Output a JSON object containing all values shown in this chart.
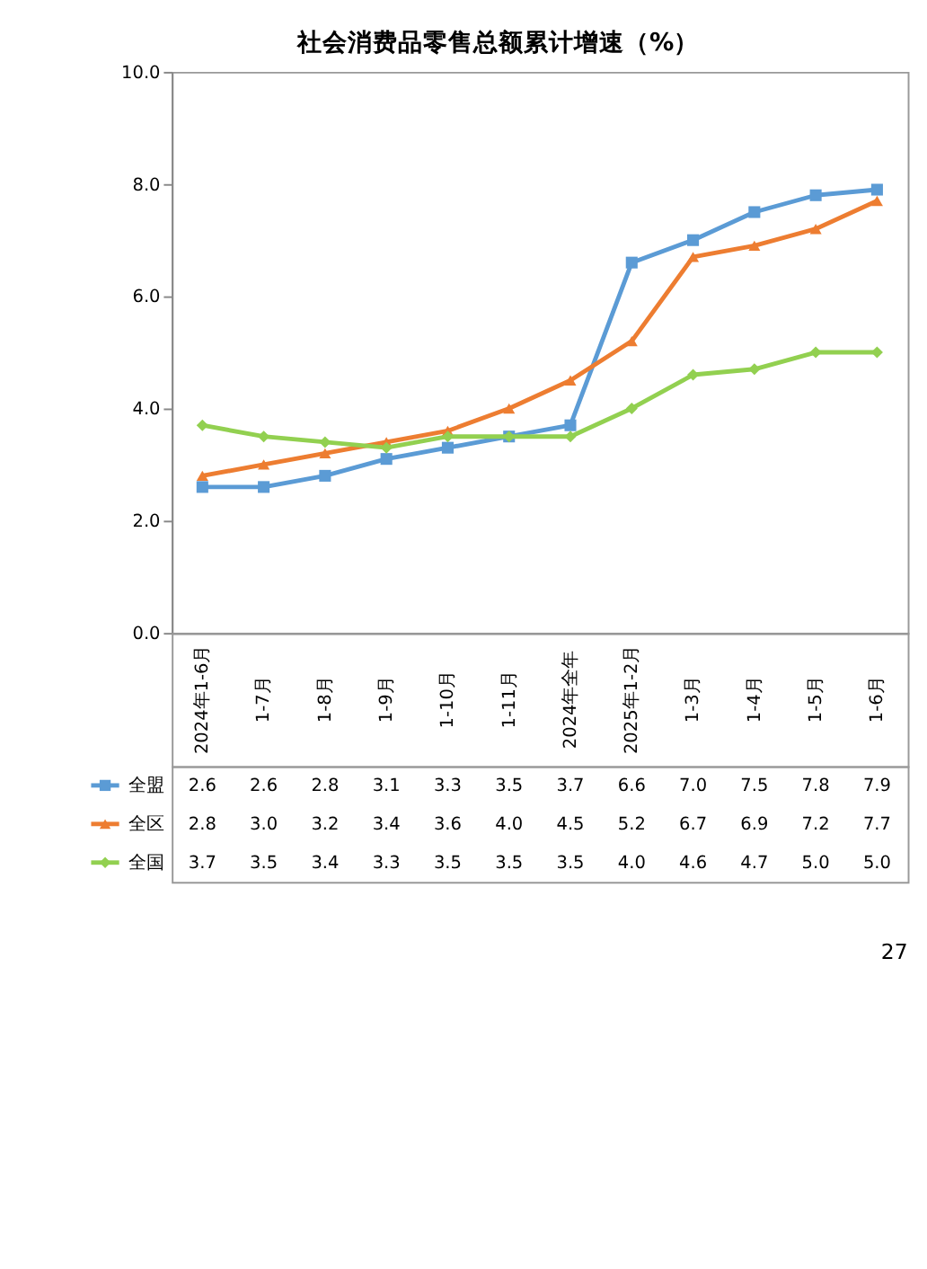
{
  "chart_data": {
    "type": "line",
    "title": "社会消费品零售总额累计增速（%）",
    "categories": [
      "2024年1-6月",
      "1-7月",
      "1-8月",
      "1-9月",
      "1-10月",
      "1-11月",
      "2024年全年",
      "2025年1-2月",
      "1-3月",
      "1-4月",
      "1-5月",
      "1-6月"
    ],
    "series": [
      {
        "name": "全盟",
        "color": "#5b9bd5",
        "marker": "square",
        "values": [
          2.6,
          2.6,
          2.8,
          3.1,
          3.3,
          3.5,
          3.7,
          6.6,
          7.0,
          7.5,
          7.8,
          7.9
        ],
        "value_labels": [
          "2.6",
          "2.6",
          "2.8",
          "3.1",
          "3.3",
          "3.5",
          "3.7",
          "6.6",
          "7.0",
          "7.5",
          "7.8",
          "7.9"
        ]
      },
      {
        "name": "全区",
        "color": "#ed7d31",
        "marker": "triangle",
        "values": [
          2.8,
          3.0,
          3.2,
          3.4,
          3.6,
          4.0,
          4.5,
          5.2,
          6.7,
          6.9,
          7.2,
          7.7
        ],
        "value_labels": [
          "2.8",
          "3.0",
          "3.2",
          "3.4",
          "3.6",
          "4.0",
          "4.5",
          "5.2",
          "6.7",
          "6.9",
          "7.2",
          "7.7"
        ]
      },
      {
        "name": "全国",
        "color": "#92d050",
        "marker": "diamond",
        "values": [
          3.7,
          3.5,
          3.4,
          3.3,
          3.5,
          3.5,
          3.5,
          4.0,
          4.6,
          4.7,
          5.0,
          5.0
        ],
        "value_labels": [
          "3.7",
          "3.5",
          "3.4",
          "3.3",
          "3.5",
          "3.5",
          "3.5",
          "4.0",
          "4.6",
          "4.7",
          "5.0",
          "5.0"
        ]
      }
    ],
    "ylim": [
      0,
      10
    ],
    "yticks": [
      {
        "value": 0,
        "label": "0.0"
      },
      {
        "value": 2,
        "label": "2.0"
      },
      {
        "value": 4,
        "label": "4.0"
      },
      {
        "value": 6,
        "label": "6.0"
      },
      {
        "value": 8,
        "label": "8.0"
      },
      {
        "value": 10,
        "label": "10.0"
      }
    ],
    "tick_labels": "y",
    "legend": "bottom",
    "grid": false,
    "line_style": "solid",
    "annotations": [
      "27"
    ]
  }
}
